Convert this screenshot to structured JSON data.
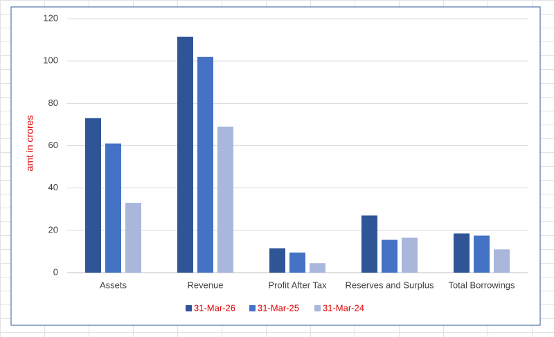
{
  "chart_data": {
    "type": "bar",
    "y_label": "amt in crores",
    "categories": [
      "Assets",
      "Revenue",
      "Profit After Tax",
      "Reserves and Surplus",
      "Total Borrowings"
    ],
    "series": [
      {
        "name": "31-Mar-26",
        "color": "#2f5597",
        "values": [
          73,
          111.5,
          11.5,
          27,
          18.5
        ]
      },
      {
        "name": "31-Mar-25",
        "color": "#4472c4",
        "values": [
          61,
          102,
          9.5,
          15.5,
          17.5
        ]
      },
      {
        "name": "31-Mar-24",
        "color": "#a9b7dc",
        "values": [
          33,
          69,
          4.5,
          16.5,
          11
        ]
      }
    ],
    "ylim": [
      0,
      120
    ],
    "yticks": [
      0,
      20,
      40,
      60,
      80,
      100,
      120
    ],
    "grid": true,
    "legend": "bottom"
  }
}
